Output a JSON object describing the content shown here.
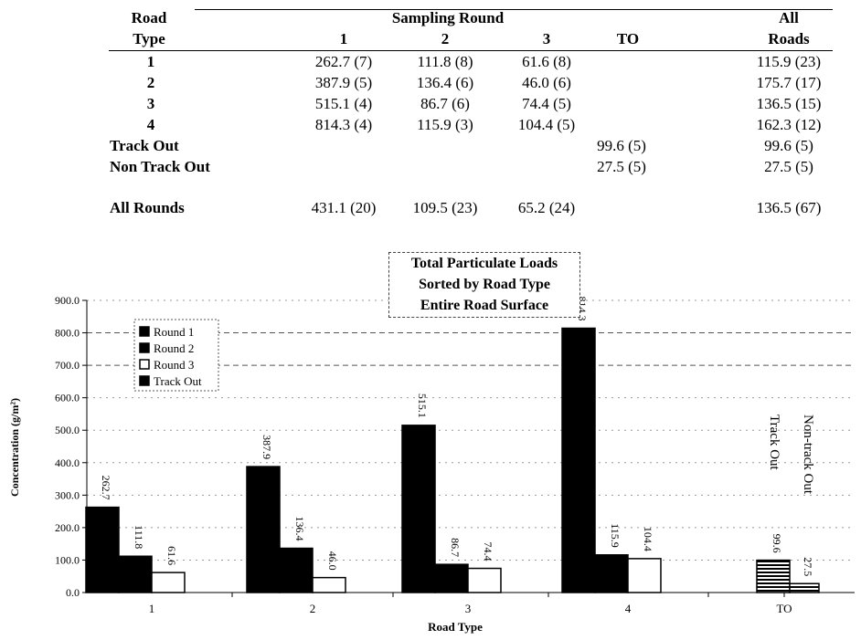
{
  "table": {
    "header_road_type": [
      "Road",
      "Type"
    ],
    "header_sampling_round": "Sampling Round",
    "header_all_roads": [
      "All",
      "Roads"
    ],
    "col_headers": [
      "1",
      "2",
      "3",
      "TO"
    ],
    "rows": [
      {
        "label": "1",
        "r1": "262.7 (7)",
        "r2": "111.8 (8)",
        "r3": "61.6 (8)",
        "to": "",
        "all": "115.9 (23)"
      },
      {
        "label": "2",
        "r1": "387.9 (5)",
        "r2": "136.4 (6)",
        "r3": "46.0 (6)",
        "to": "",
        "all": "175.7 (17)"
      },
      {
        "label": "3",
        "r1": "515.1 (4)",
        "r2": "86.7 (6)",
        "r3": "74.4 (5)",
        "to": "",
        "all": "136.5 (15)"
      },
      {
        "label": "4",
        "r1": "814.3 (4)",
        "r2": "115.9 (3)",
        "r3": "104.4 (5)",
        "to": "",
        "all": "162.3 (12)"
      },
      {
        "label": "Track Out",
        "r1": "",
        "r2": "",
        "r3": "",
        "to": "99.6 (5)",
        "all": "99.6 (5)"
      },
      {
        "label": "Non Track Out",
        "r1": "",
        "r2": "",
        "r3": "",
        "to": "27.5 (5)",
        "all": "27.5 (5)"
      }
    ],
    "total_row": {
      "label": "All Rounds",
      "r1": "431.1 (20)",
      "r2": "109.5 (23)",
      "r3": "65.2 (24)",
      "to": "",
      "all": "136.5 (67)"
    }
  },
  "chart_data": {
    "type": "bar",
    "title": [
      "Total Particulate Loads",
      "Sorted by Road Type",
      "Entire Road Surface"
    ],
    "xlabel": "Road Type",
    "ylabel": "Concentration (g/m²)",
    "ylim": [
      0,
      900
    ],
    "yticks": [
      "0.0",
      "100.0",
      "200.0",
      "300.0",
      "400.0",
      "500.0",
      "600.0",
      "700.0",
      "800.0",
      "900.0"
    ],
    "categories": [
      "1",
      "2",
      "3",
      "4",
      "TO"
    ],
    "legend_position": "top-left",
    "series": [
      {
        "name": "Round 1",
        "values": [
          262.7,
          387.9,
          515.1,
          814.3,
          null
        ],
        "labels": [
          "262.7",
          "387.9",
          "515.1",
          "814.3",
          ""
        ],
        "color": "#000000"
      },
      {
        "name": "Round 2",
        "values": [
          111.8,
          136.4,
          86.7,
          115.9,
          null
        ],
        "labels": [
          "111.8",
          "136.4",
          "86.7",
          "115.9",
          ""
        ],
        "color": "#000000"
      },
      {
        "name": "Round 3",
        "values": [
          61.6,
          46.0,
          74.4,
          104.4,
          null
        ],
        "labels": [
          "61.6",
          "46.0",
          "74.4",
          "104.4",
          ""
        ],
        "color": "#ffffff"
      },
      {
        "name": "Track Out",
        "values": [
          null,
          null,
          null,
          null,
          99.6
        ],
        "labels": [
          "",
          "",
          "",
          "",
          "99.6"
        ],
        "color": "#000000"
      }
    ],
    "extra_bar": {
      "category": "TO",
      "value": 27.5,
      "label": "27.5"
    },
    "annotations": [
      "Track Out",
      "Non-track Out"
    ],
    "grid": "dashed horizontal"
  }
}
